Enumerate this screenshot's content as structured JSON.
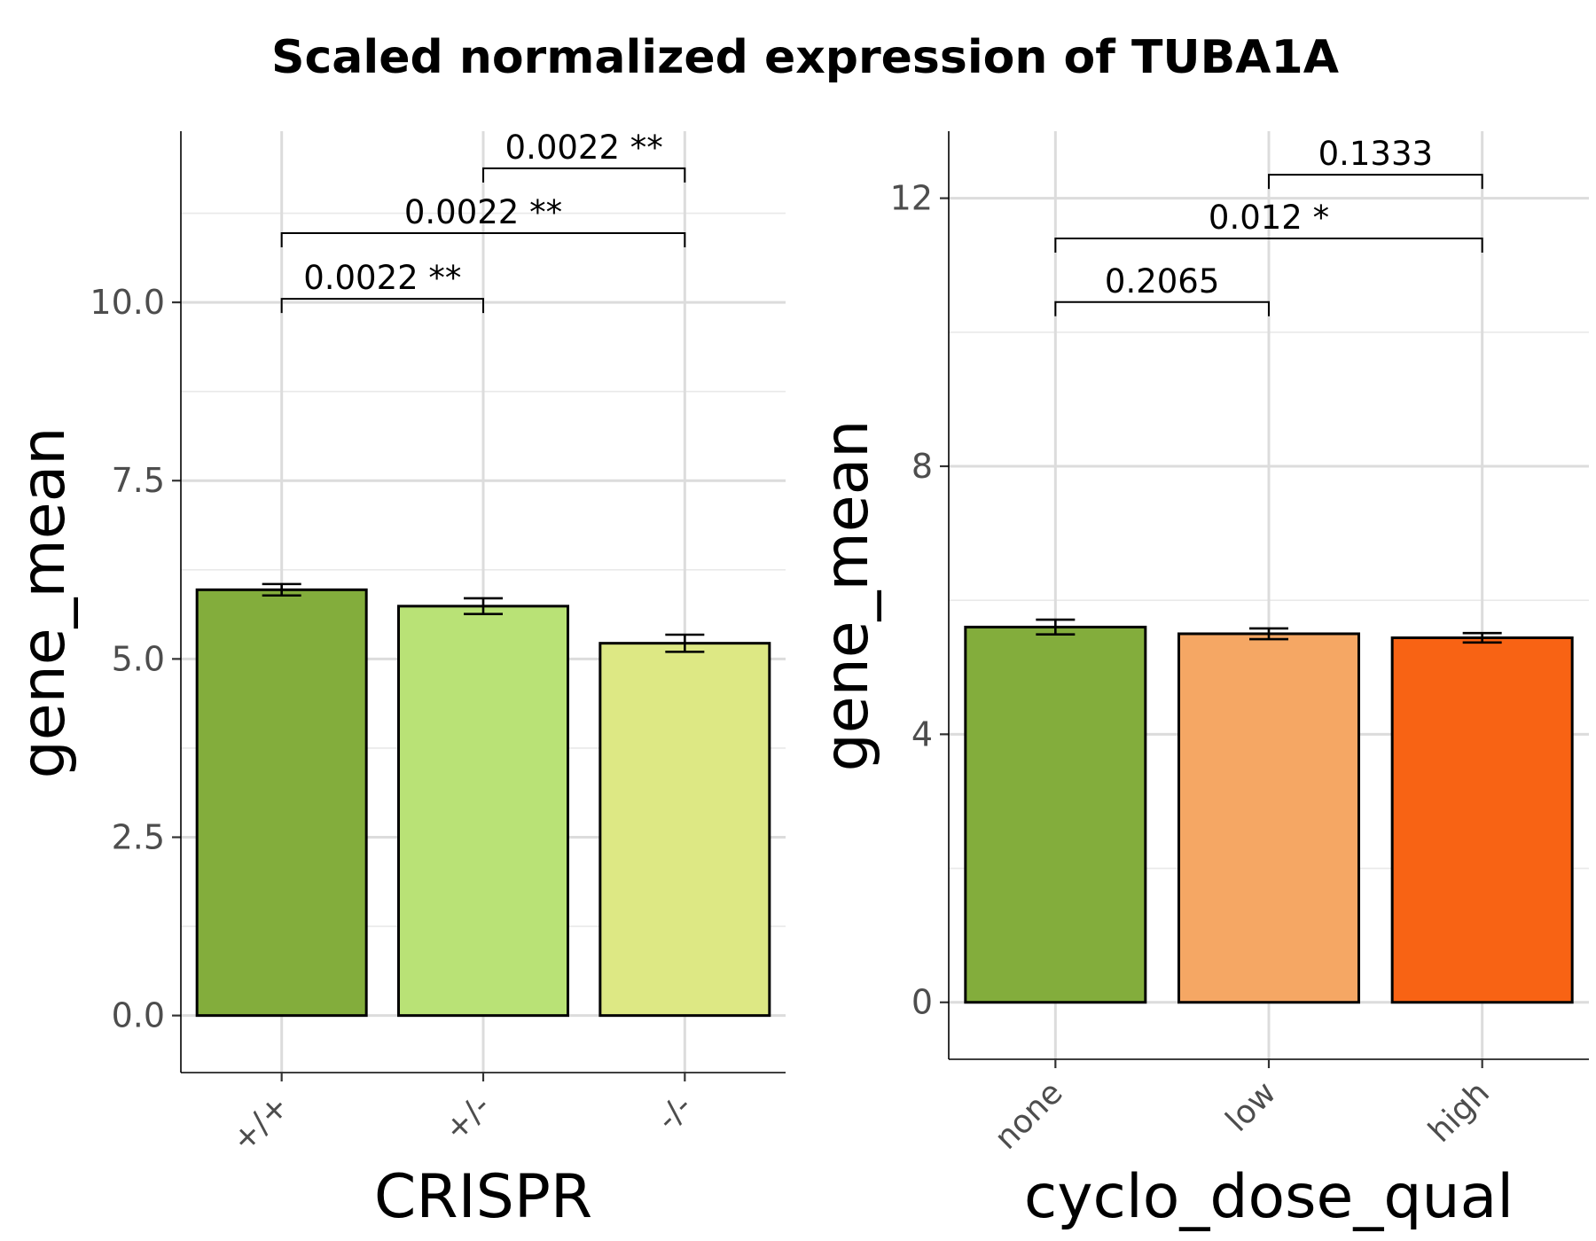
{
  "title": "Scaled normalized expression of TUBA1A",
  "chart_data": [
    {
      "type": "bar",
      "xlabel": "CRISPR",
      "ylabel": "gene_mean",
      "categories": [
        "+/+",
        "+/-",
        "-/-"
      ],
      "values": [
        5.97,
        5.74,
        5.22
      ],
      "errors": [
        0.08,
        0.11,
        0.12
      ],
      "colors": [
        "#83ad3c",
        "#b9e276",
        "#dde884"
      ],
      "ylim": [
        -0.8,
        12.4
      ],
      "yticks": [
        0.0,
        2.5,
        5.0,
        7.5,
        10.0
      ],
      "ytick_labels": [
        "0.0",
        "2.5",
        "5.0",
        "7.5",
        "10.0"
      ],
      "grid": true,
      "comparisons": [
        {
          "from": 0,
          "to": 1,
          "y": 10.05,
          "label": "0.0022 **"
        },
        {
          "from": 0,
          "to": 2,
          "y": 10.97,
          "label": "0.0022 **"
        },
        {
          "from": 1,
          "to": 2,
          "y": 11.88,
          "label": "0.0022 **"
        }
      ]
    },
    {
      "type": "bar",
      "xlabel": "cyclo_dose_qual",
      "ylabel": "gene_mean",
      "categories": [
        "none",
        "low",
        "high"
      ],
      "values": [
        5.6,
        5.5,
        5.44
      ],
      "errors": [
        0.11,
        0.08,
        0.07
      ],
      "colors": [
        "#83ad3c",
        "#f5a764",
        "#f86314"
      ],
      "ylim": [
        -0.85,
        13.0
      ],
      "yticks": [
        0,
        4,
        8,
        12
      ],
      "ytick_labels": [
        "0",
        "4",
        "8",
        "12"
      ],
      "grid": true,
      "comparisons": [
        {
          "from": 0,
          "to": 1,
          "y": 10.45,
          "label": "0.2065"
        },
        {
          "from": 0,
          "to": 2,
          "y": 11.4,
          "label": "0.012 *"
        },
        {
          "from": 1,
          "to": 2,
          "y": 12.35,
          "label": "0.1333"
        }
      ]
    }
  ]
}
